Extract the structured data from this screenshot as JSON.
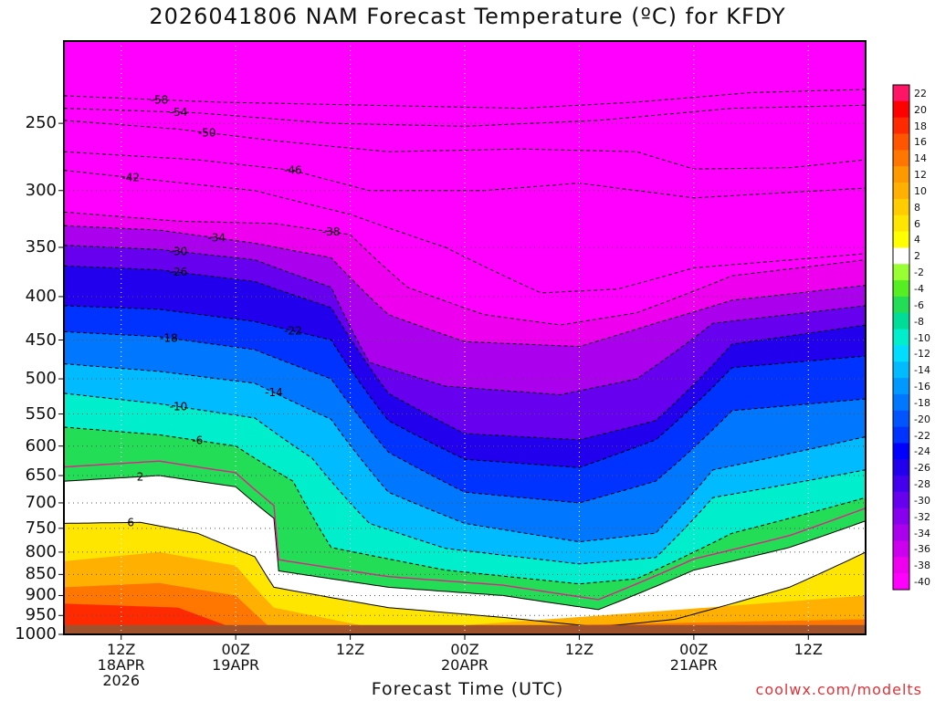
{
  "title": "2026041806 NAM Forecast Temperature (ºC) for KFDY",
  "xlabel": "Forecast Time (UTC)",
  "credit": "coolwx.com/modelts",
  "colors": {
    "ground": "#a0522d",
    "freezing_line": "#e0208c"
  },
  "chart_data": {
    "type": "contour",
    "title": "2026041806 NAM Forecast Temperature (ºC) for KFDY",
    "xlabel": "Forecast Time (UTC)",
    "ylabel": "",
    "y_scale": "log-pressure (hPa, inverted)",
    "ylim": [
      1000,
      200
    ],
    "y_ticks": [
      250,
      300,
      350,
      400,
      450,
      500,
      550,
      600,
      650,
      700,
      750,
      800,
      850,
      900,
      950,
      1000
    ],
    "x_ticks": [
      {
        "hour": 6,
        "label": [
          "12Z",
          "18APR",
          "2026"
        ]
      },
      {
        "hour": 18,
        "label": [
          "00Z",
          "19APR"
        ]
      },
      {
        "hour": 30,
        "label": [
          "12Z"
        ]
      },
      {
        "hour": 42,
        "label": [
          "00Z",
          "20APR"
        ]
      },
      {
        "hour": 54,
        "label": [
          "12Z"
        ]
      },
      {
        "hour": 66,
        "label": [
          "00Z",
          "21APR"
        ]
      },
      {
        "hour": 78,
        "label": [
          "12Z"
        ]
      }
    ],
    "xlim": [
      0,
      84
    ],
    "grid": true,
    "colorbar": {
      "labels": [
        "22",
        "20",
        "18",
        "16",
        "14",
        "12",
        "10",
        "8",
        "6",
        "4",
        "2",
        "-2",
        "-4",
        "-6",
        "-8",
        "-10",
        "-12",
        "-14",
        "-16",
        "-18",
        "-20",
        "-22",
        "-24",
        "-26",
        "-28",
        "-30",
        "-32",
        "-34",
        "-36",
        "-38",
        "-40"
      ],
      "colors": [
        "#ff1466",
        "#ff0000",
        "#ff2a00",
        "#ff5500",
        "#ff7700",
        "#ff9900",
        "#ffb000",
        "#ffcc00",
        "#ffe600",
        "#ffff00",
        "#ffffff",
        "#99ff33",
        "#55ee22",
        "#22dd55",
        "#00dd99",
        "#00eecc",
        "#00ddff",
        "#00bbff",
        "#0099ff",
        "#0077ff",
        "#0055ff",
        "#0033ff",
        "#0000ff",
        "#2200ee",
        "#4400ee",
        "#6600ee",
        "#8800ee",
        "#aa00ee",
        "#cc00ee",
        "#ee00ee",
        "#ff00ff"
      ]
    },
    "isotherms": [
      {
        "value": -58,
        "label": "-58",
        "profile": [
          [
            0,
            232
          ],
          [
            16,
            236
          ],
          [
            32,
            238
          ],
          [
            48,
            240
          ],
          [
            60,
            236
          ],
          [
            72,
            230
          ],
          [
            84,
            228
          ]
        ]
      },
      {
        "value": -54,
        "label": "-54",
        "profile": [
          [
            0,
            240
          ],
          [
            14,
            243
          ],
          [
            28,
            250
          ],
          [
            42,
            252
          ],
          [
            56,
            248
          ],
          [
            70,
            240
          ],
          [
            84,
            238
          ]
        ]
      },
      {
        "value": -50,
        "label": "-50",
        "profile": [
          [
            0,
            248
          ],
          [
            12,
            254
          ],
          [
            22,
            262
          ],
          [
            34,
            270
          ],
          [
            48,
            268
          ],
          [
            60,
            270
          ],
          [
            66,
            283
          ],
          [
            76,
            282
          ],
          [
            84,
            276
          ]
        ]
      },
      {
        "value": -46,
        "label": "-46",
        "profile": [
          [
            0,
            270
          ],
          [
            14,
            276
          ],
          [
            24,
            284
          ],
          [
            32,
            300
          ],
          [
            44,
            300
          ],
          [
            54,
            294
          ],
          [
            66,
            306
          ],
          [
            84,
            298
          ]
        ]
      },
      {
        "value": -42,
        "label": "-42",
        "profile": [
          [
            0,
            284
          ],
          [
            10,
            292
          ],
          [
            20,
            300
          ],
          [
            30,
            320
          ],
          [
            40,
            350
          ],
          [
            50,
            396
          ],
          [
            58,
            392
          ],
          [
            66,
            370
          ],
          [
            84,
            356
          ]
        ]
      },
      {
        "value": -38,
        "label": "-38",
        "profile": [
          [
            0,
            318
          ],
          [
            12,
            326
          ],
          [
            22,
            328
          ],
          [
            30,
            338
          ],
          [
            36,
            390
          ],
          [
            44,
            420
          ],
          [
            52,
            432
          ],
          [
            60,
            418
          ],
          [
            70,
            378
          ],
          [
            84,
            362
          ]
        ]
      },
      {
        "value": -34,
        "label": "-34",
        "profile": [
          [
            0,
            330
          ],
          [
            10,
            334
          ],
          [
            20,
            346
          ],
          [
            28,
            360
          ],
          [
            34,
            420
          ],
          [
            42,
            452
          ],
          [
            54,
            458
          ],
          [
            62,
            430
          ],
          [
            70,
            404
          ],
          [
            84,
            388
          ]
        ]
      },
      {
        "value": -30,
        "label": "-30",
        "profile": [
          [
            0,
            348
          ],
          [
            10,
            352
          ],
          [
            20,
            362
          ],
          [
            28,
            390
          ],
          [
            32,
            478
          ],
          [
            40,
            510
          ],
          [
            52,
            522
          ],
          [
            60,
            500
          ],
          [
            68,
            430
          ],
          [
            84,
            410
          ]
        ]
      },
      {
        "value": -26,
        "label": "-26",
        "profile": [
          [
            0,
            368
          ],
          [
            10,
            372
          ],
          [
            20,
            384
          ],
          [
            28,
            412
          ],
          [
            34,
            520
          ],
          [
            42,
            580
          ],
          [
            54,
            590
          ],
          [
            62,
            560
          ],
          [
            70,
            455
          ],
          [
            84,
            432
          ]
        ]
      },
      {
        "value": -22,
        "label": "-22",
        "profile": [
          [
            0,
            410
          ],
          [
            10,
            414
          ],
          [
            20,
            428
          ],
          [
            28,
            450
          ],
          [
            34,
            560
          ],
          [
            42,
            622
          ],
          [
            54,
            636
          ],
          [
            62,
            590
          ],
          [
            70,
            485
          ],
          [
            84,
            470
          ]
        ]
      },
      {
        "value": -18,
        "label": "-18",
        "profile": [
          [
            0,
            440
          ],
          [
            10,
            446
          ],
          [
            20,
            462
          ],
          [
            28,
            500
          ],
          [
            34,
            610
          ],
          [
            42,
            680
          ],
          [
            54,
            700
          ],
          [
            62,
            660
          ],
          [
            70,
            545
          ],
          [
            84,
            528
          ]
        ]
      },
      {
        "value": -14,
        "label": "-14",
        "profile": [
          [
            0,
            480
          ],
          [
            10,
            490
          ],
          [
            20,
            506
          ],
          [
            28,
            558
          ],
          [
            34,
            680
          ],
          [
            42,
            740
          ],
          [
            54,
            778
          ],
          [
            62,
            760
          ],
          [
            68,
            640
          ],
          [
            84,
            585
          ]
        ]
      },
      {
        "value": -10,
        "label": "-10",
        "profile": [
          [
            0,
            520
          ],
          [
            10,
            535
          ],
          [
            20,
            556
          ],
          [
            26,
            620
          ],
          [
            32,
            740
          ],
          [
            40,
            792
          ],
          [
            54,
            826
          ],
          [
            62,
            812
          ],
          [
            68,
            690
          ],
          [
            84,
            640
          ]
        ]
      },
      {
        "value": -6,
        "label": "-6",
        "profile": [
          [
            0,
            570
          ],
          [
            10,
            582
          ],
          [
            18,
            600
          ],
          [
            24,
            660
          ],
          [
            28,
            790
          ],
          [
            40,
            840
          ],
          [
            54,
            872
          ],
          [
            60,
            860
          ],
          [
            70,
            760
          ],
          [
            84,
            690
          ]
        ]
      },
      {
        "value": 2,
        "label": "2",
        "profile": [
          [
            0,
            660
          ],
          [
            10,
            650
          ],
          [
            18,
            670
          ],
          [
            22,
            730
          ],
          [
            22,
            840
          ],
          [
            34,
            880
          ],
          [
            46,
            900
          ],
          [
            56,
            935
          ],
          [
            66,
            840
          ],
          [
            76,
            790
          ],
          [
            84,
            735
          ]
        ]
      },
      {
        "value": 6,
        "label": "6",
        "profile": [
          [
            0,
            740
          ],
          [
            8,
            738
          ],
          [
            14,
            760
          ],
          [
            20,
            810
          ],
          [
            22,
            880
          ],
          [
            34,
            930
          ],
          [
            46,
            955
          ],
          [
            56,
            980
          ],
          [
            64,
            960
          ],
          [
            76,
            880
          ],
          [
            84,
            800
          ]
        ]
      }
    ],
    "labels_on_chart": [
      "-58",
      "-54",
      "-50",
      "-46",
      "-42",
      "-38",
      "-34",
      "-30",
      "-26",
      "-22",
      "-18",
      "-14",
      "-10",
      "-6",
      "2",
      "6"
    ]
  }
}
